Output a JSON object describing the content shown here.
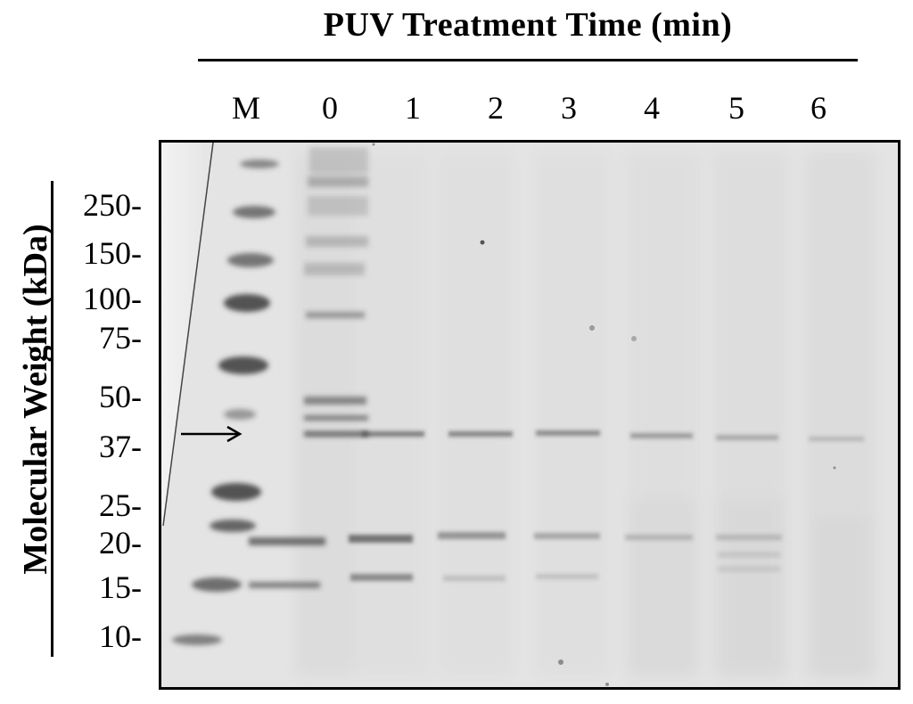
{
  "title": "PUV Treatment Time (min)",
  "y_axis_label": "Molecular Weight (kDa)",
  "lanes": [
    "M",
    "0",
    "1",
    "2",
    "3",
    "4",
    "5",
    "6"
  ],
  "mw_markers": [
    "250-",
    "150-",
    "100-",
    "75-",
    "50-",
    "37-",
    "25-",
    "20-",
    "15-",
    "10-"
  ],
  "arrow_icon": "right-arrow-icon",
  "colors": {
    "gel_background": "#e4e4e4",
    "band": "#3a3a3a",
    "text": "#000000"
  }
}
